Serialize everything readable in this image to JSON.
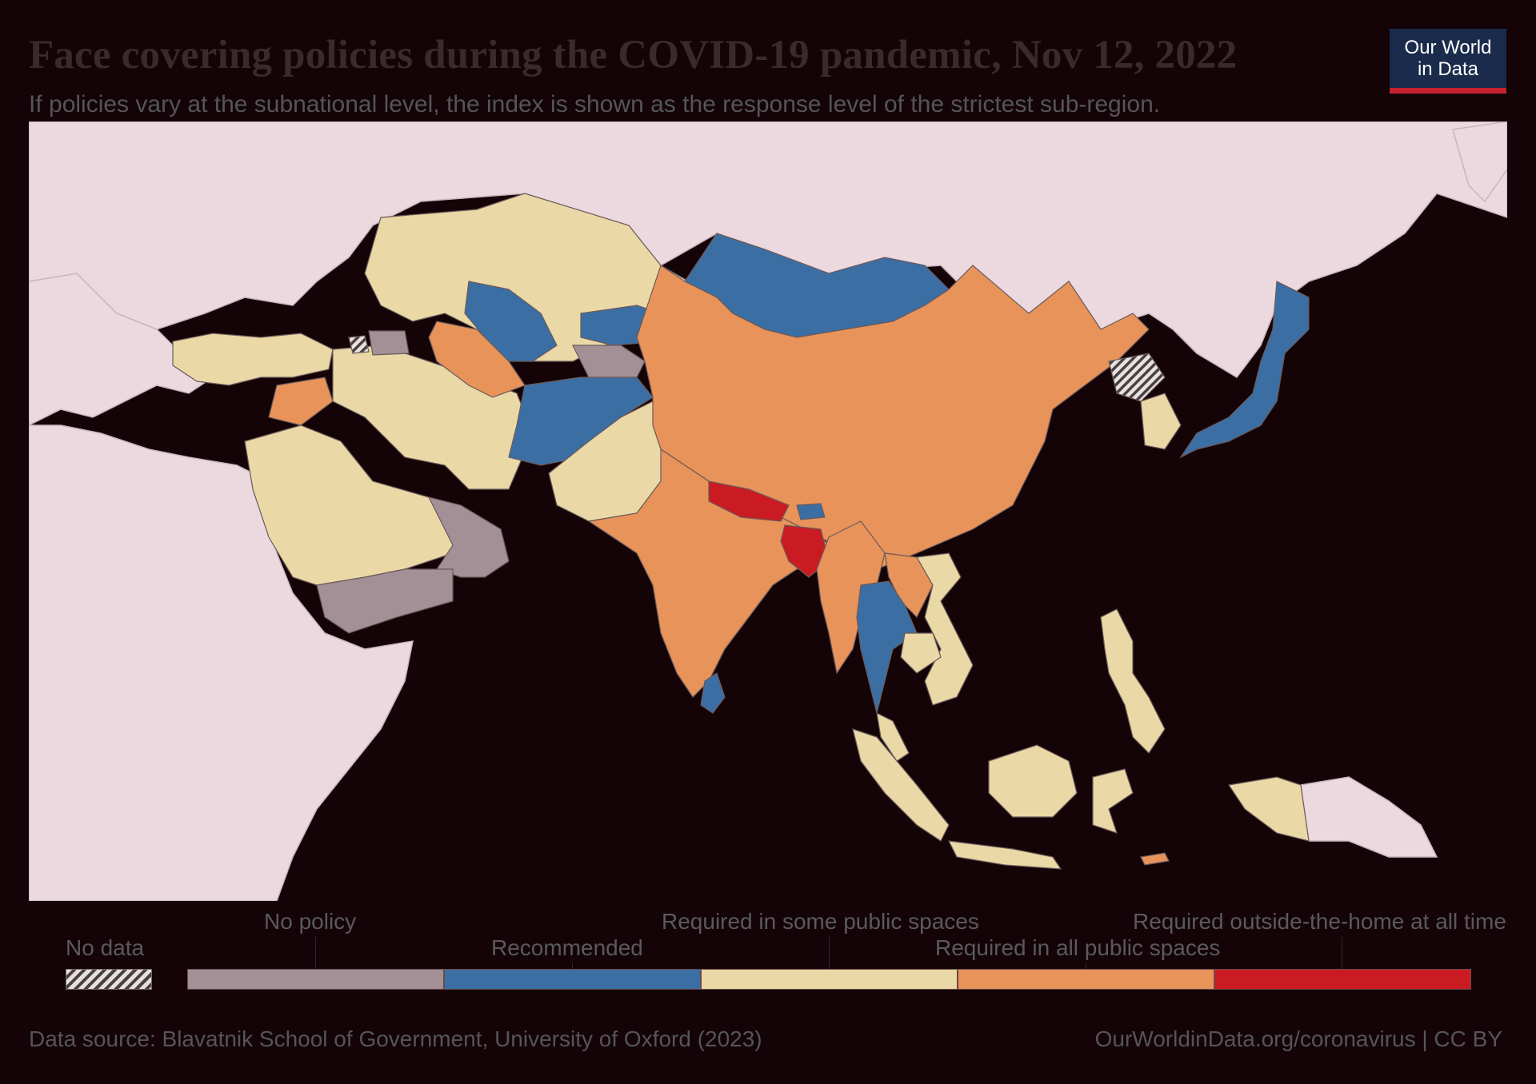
{
  "header": {
    "title": "Face covering policies during the COVID-19 pandemic, Nov 12, 2022",
    "subtitle": "If policies vary at the subnational level, the index is shown as the response level of the strictest sub-region."
  },
  "logo": {
    "line1": "Our World",
    "line2": "in Data"
  },
  "map": {
    "region": "Asia",
    "categories": {
      "no_data": {
        "label": "No data",
        "color": "hatched"
      },
      "no_policy": {
        "label": "No policy",
        "color": "#a38f96"
      },
      "recommended": {
        "label": "Recommended",
        "color": "#3b6ea3"
      },
      "some_public": {
        "label": "Required in some public spaces",
        "color": "#ead8a6"
      },
      "all_public": {
        "label": "Required in all public spaces",
        "color": "#e8935a"
      },
      "at_all_times": {
        "label": "Required outside-the-home at all times",
        "color": "#cb1b22"
      }
    },
    "countries": {
      "Kazakhstan": "some_public",
      "Mongolia": "recommended",
      "China": "all_public",
      "Japan": "recommended",
      "South Korea": "some_public",
      "North Korea": "no_data",
      "India": "all_public",
      "Nepal": "at_all_times",
      "Bangladesh": "at_all_times",
      "Bhutan": "recommended",
      "Sri Lanka": "recommended",
      "Pakistan": "some_public",
      "Afghanistan": "recommended",
      "Iran": "some_public",
      "Turkey": "some_public",
      "Saudi Arabia": "some_public",
      "Oman": "no_policy",
      "Yemen": "no_policy",
      "Uzbekistan": "recommended",
      "Turkmenistan": "all_public",
      "Tajikistan": "no_policy",
      "Kyrgyzstan": "recommended",
      "Syria": "all_public",
      "Thailand": "recommended",
      "Myanmar": "all_public",
      "Vietnam": "some_public",
      "Laos": "all_public",
      "Indonesia": "some_public",
      "Philippines": "some_public",
      "Malaysia": "some_public",
      "Timor-Leste": "all_public",
      "Armenia": "no_data",
      "Azerbaijan": "no_policy"
    }
  },
  "legend": {
    "no_data": "No data",
    "no_policy": "No policy",
    "recommended": "Recommended",
    "some_public": "Required in some public spaces",
    "all_public": "Required in all public spaces",
    "at_all_times": "Required outside-the-home at all time"
  },
  "footer": {
    "source": "Data source: Blavatnik School of Government, University of Oxford (2023)",
    "link": "OurWorldinData.org/coronavirus | CC BY"
  }
}
